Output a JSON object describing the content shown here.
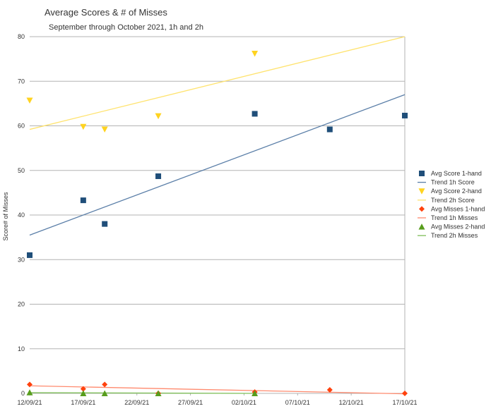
{
  "chart_data": {
    "type": "scatter",
    "title": "Average Scores & # of Misses",
    "subtitle": "September through October 2021, 1h and 2h",
    "xlabel": "",
    "ylabel": "Score# of Misses",
    "x_ticks": [
      "12/09/21",
      "17/09/21",
      "22/09/21",
      "27/09/21",
      "02/10/21",
      "07/10/21",
      "12/10/21",
      "17/10/21"
    ],
    "xlim": [
      "2021-09-12",
      "2021-10-17"
    ],
    "ylim": [
      0,
      80
    ],
    "y_ticks": [
      0,
      10,
      20,
      30,
      40,
      50,
      60,
      70,
      80
    ],
    "grid": "horizontal",
    "legend_position": "right",
    "series": [
      {
        "name": "Avg Score 1-hand",
        "marker": "square",
        "color": "#1f4e79",
        "points": [
          {
            "x": "2021-09-12",
            "y": 31
          },
          {
            "x": "2021-09-17",
            "y": 43.3
          },
          {
            "x": "2021-09-19",
            "y": 38
          },
          {
            "x": "2021-09-24",
            "y": 48.7
          },
          {
            "x": "2021-10-03",
            "y": 62.7
          },
          {
            "x": "2021-10-10",
            "y": 59.2
          },
          {
            "x": "2021-10-17",
            "y": 62.3
          }
        ]
      },
      {
        "name": "Trend 1h Score",
        "type": "line",
        "color": "#5b7fa8",
        "points": [
          {
            "x": "2021-09-12",
            "y": 35.5
          },
          {
            "x": "2021-10-17",
            "y": 67
          }
        ]
      },
      {
        "name": "Avg Score 2-hand",
        "marker": "triangle-down",
        "color": "#ffd320",
        "points": [
          {
            "x": "2021-09-12",
            "y": 65.7
          },
          {
            "x": "2021-09-17",
            "y": 59.8
          },
          {
            "x": "2021-09-19",
            "y": 59.2
          },
          {
            "x": "2021-09-24",
            "y": 62.2
          },
          {
            "x": "2021-10-03",
            "y": 76.2
          }
        ]
      },
      {
        "name": "Trend 2h Score",
        "type": "line",
        "color": "#ffe36e",
        "points": [
          {
            "x": "2021-09-12",
            "y": 59.2
          },
          {
            "x": "2021-10-17",
            "y": 80
          }
        ]
      },
      {
        "name": "Avg Misses 1-hand",
        "marker": "diamond",
        "color": "#ff420e",
        "points": [
          {
            "x": "2021-09-12",
            "y": 2
          },
          {
            "x": "2021-09-17",
            "y": 1
          },
          {
            "x": "2021-09-19",
            "y": 2
          },
          {
            "x": "2021-09-24",
            "y": 0
          },
          {
            "x": "2021-10-03",
            "y": 0.3
          },
          {
            "x": "2021-10-10",
            "y": 0.8
          },
          {
            "x": "2021-10-17",
            "y": 0
          }
        ]
      },
      {
        "name": "Trend 1h Misses",
        "type": "line",
        "color": "#ff8a6e",
        "points": [
          {
            "x": "2021-09-12",
            "y": 1.7
          },
          {
            "x": "2021-10-17",
            "y": -0.1
          }
        ]
      },
      {
        "name": "Avg Misses 2-hand",
        "marker": "triangle-up",
        "color": "#579d1c",
        "points": [
          {
            "x": "2021-09-12",
            "y": 0.2
          },
          {
            "x": "2021-09-17",
            "y": 0
          },
          {
            "x": "2021-09-19",
            "y": 0
          },
          {
            "x": "2021-09-24",
            "y": 0
          },
          {
            "x": "2021-10-03",
            "y": 0
          }
        ]
      },
      {
        "name": "Trend 2h Misses",
        "type": "line",
        "color": "#7fbf5a",
        "points": [
          {
            "x": "2021-09-12",
            "y": 0.15
          },
          {
            "x": "2021-10-03",
            "y": 0
          }
        ]
      }
    ]
  }
}
